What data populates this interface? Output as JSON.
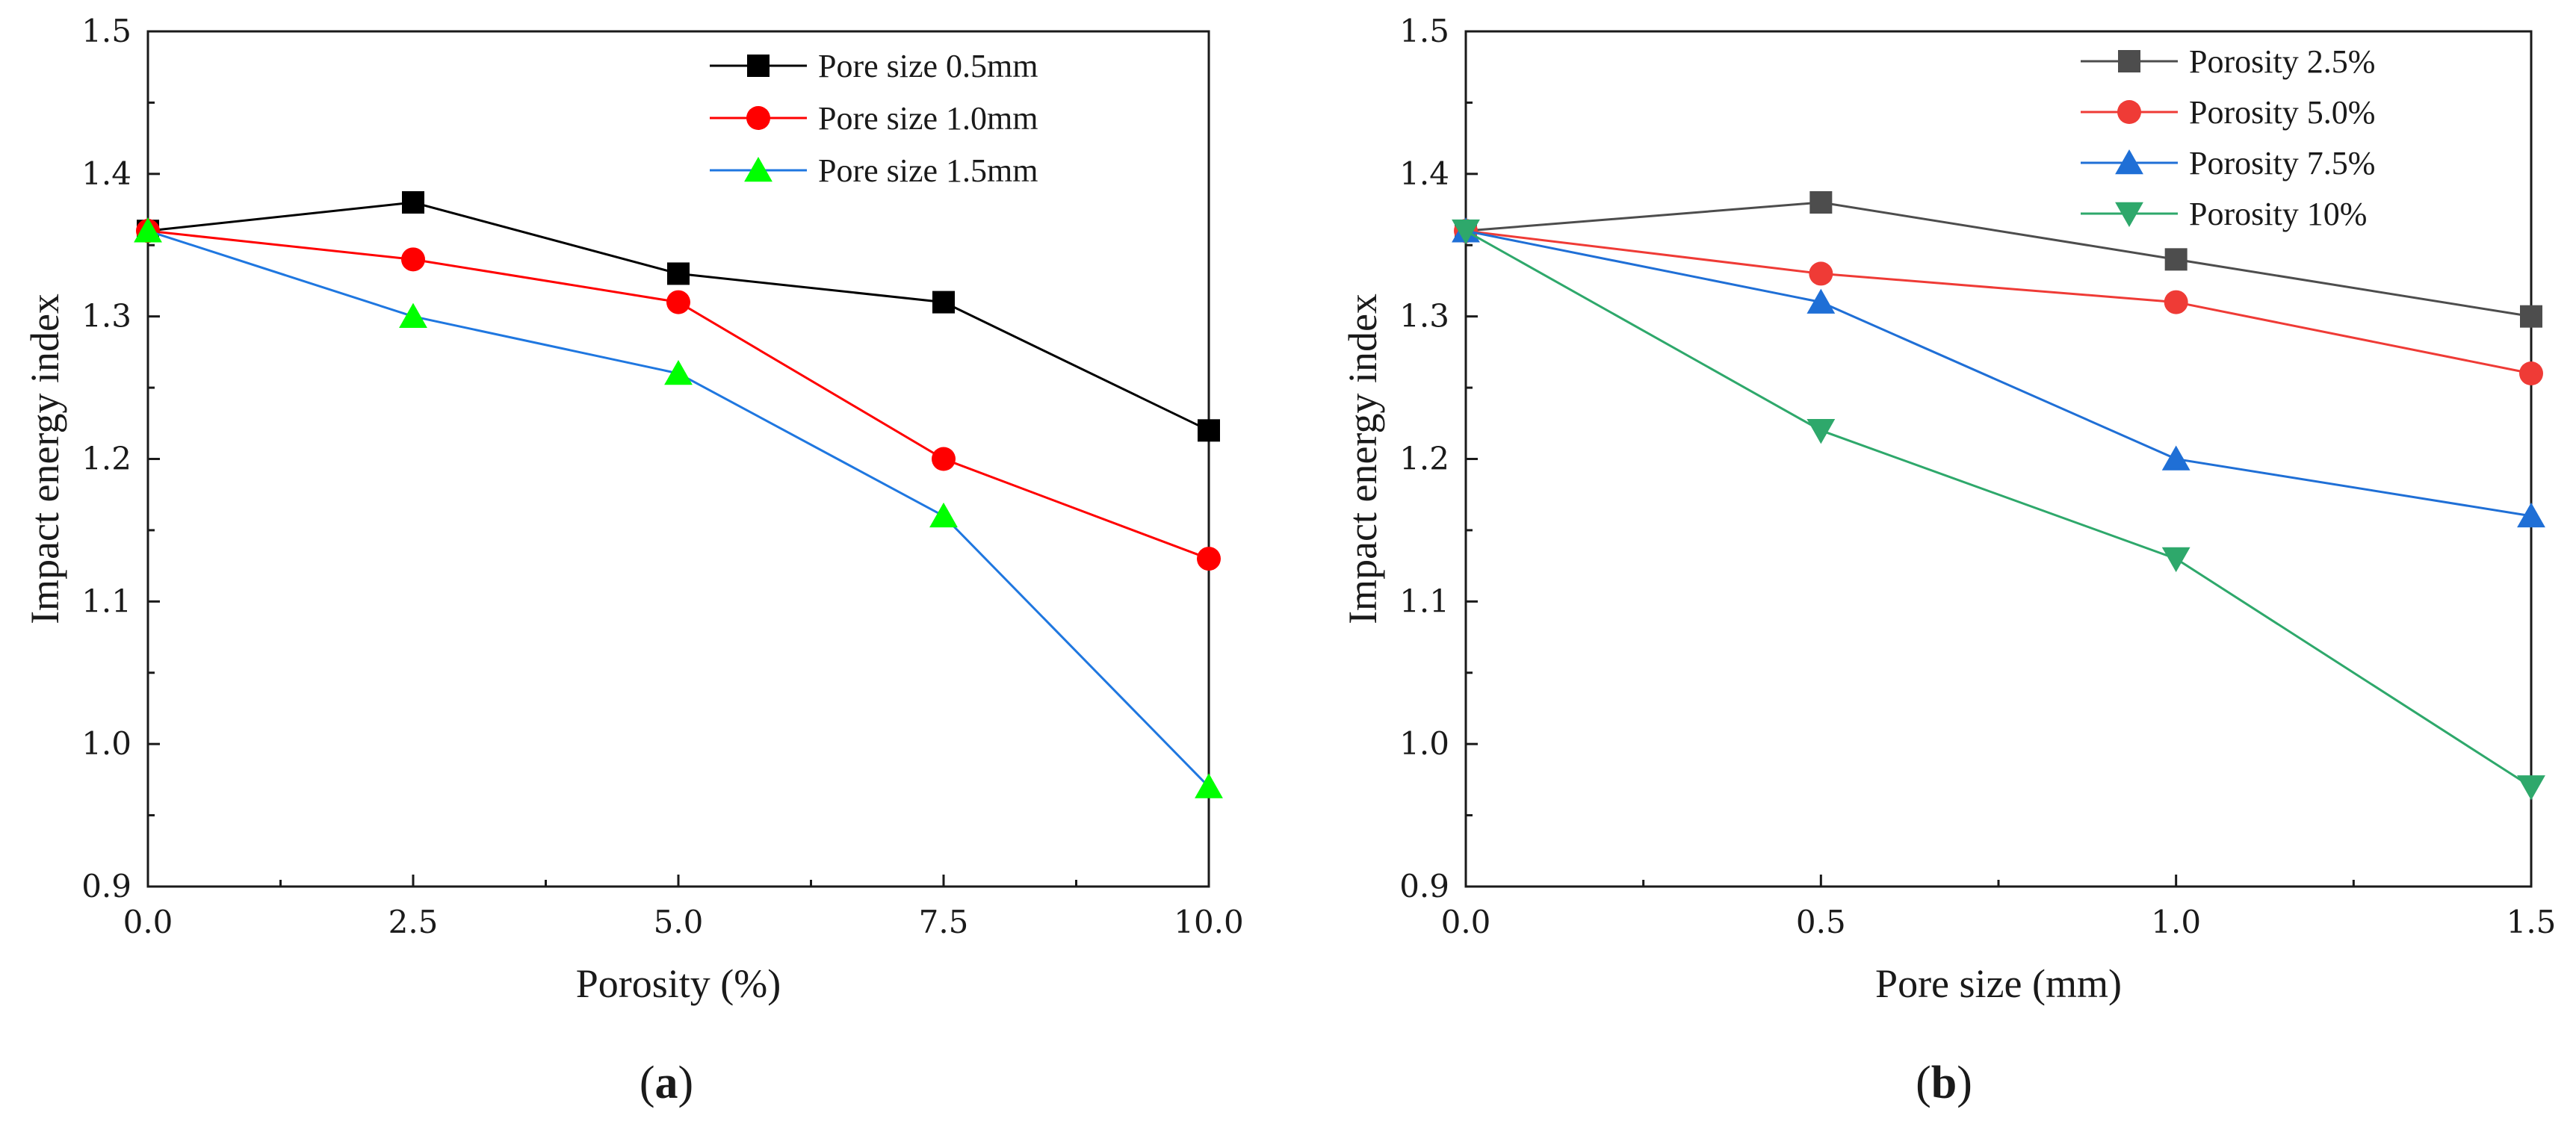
{
  "chart_data": [
    {
      "type": "line",
      "panel": "a",
      "xlabel": "Porosity (%)",
      "ylabel": "Impact energy index",
      "xlim": [
        0,
        10
      ],
      "ylim": [
        0.9,
        1.5
      ],
      "xticks": [
        0,
        2.5,
        5,
        7.5,
        10
      ],
      "xtick_labels": [
        "0.0",
        "2.5",
        "5.0",
        "7.5",
        "10.0"
      ],
      "yticks": [
        0.9,
        1.0,
        1.1,
        1.2,
        1.3,
        1.4,
        1.5
      ],
      "ytick_labels": [
        "0.9",
        "1.0",
        "1.1",
        "1.2",
        "1.3",
        "1.4",
        "1.5"
      ],
      "legend_position": "top-right",
      "x": [
        0,
        2.5,
        5,
        7.5,
        10
      ],
      "series": [
        {
          "name": "Pore size  0.5mm",
          "color": "#000000",
          "marker": "square",
          "values": [
            1.36,
            1.38,
            1.33,
            1.31,
            1.22
          ]
        },
        {
          "name": "Pore size  1.0mm",
          "color": "#ff0000",
          "marker": "circle",
          "values": [
            1.36,
            1.34,
            1.31,
            1.2,
            1.13
          ]
        },
        {
          "name": "Pore size  1.5mm",
          "color": "#00ff00",
          "line_color": "#1f77e0",
          "marker": "triangle-up",
          "values": [
            1.36,
            1.3,
            1.26,
            1.16,
            0.97
          ]
        }
      ]
    },
    {
      "type": "line",
      "panel": "b",
      "xlabel": "Pore size (mm)",
      "ylabel": "Impact energy index",
      "xlim": [
        0,
        1.5
      ],
      "ylim": [
        0.9,
        1.5
      ],
      "xticks": [
        0,
        0.5,
        1.0,
        1.5
      ],
      "xtick_labels": [
        "0.0",
        "0.5",
        "1.0",
        "1.5"
      ],
      "yticks": [
        0.9,
        1.0,
        1.1,
        1.2,
        1.3,
        1.4,
        1.5
      ],
      "ytick_labels": [
        "0.9",
        "1.0",
        "1.1",
        "1.2",
        "1.3",
        "1.4",
        "1.5"
      ],
      "legend_position": "top-right",
      "x": [
        0,
        0.5,
        1.0,
        1.5
      ],
      "series": [
        {
          "name": "Porosity 2.5%",
          "color": "#4d4d4d",
          "marker": "square",
          "values": [
            1.36,
            1.38,
            1.34,
            1.3
          ]
        },
        {
          "name": "Porosity 5.0%",
          "color": "#ef3b36",
          "marker": "circle",
          "values": [
            1.36,
            1.33,
            1.31,
            1.26
          ]
        },
        {
          "name": "Porosity 7.5%",
          "color": "#1f6fd6",
          "marker": "triangle-up",
          "values": [
            1.36,
            1.31,
            1.2,
            1.16
          ]
        },
        {
          "name": "Porosity 10%",
          "color": "#2ea86b",
          "marker": "triangle-down",
          "values": [
            1.36,
            1.22,
            1.13,
            0.97
          ]
        }
      ]
    }
  ],
  "panel_labels": {
    "a": {
      "open": "(",
      "letter": "a",
      "close": ")"
    },
    "b": {
      "open": "(",
      "letter": "b",
      "close": ")"
    }
  }
}
